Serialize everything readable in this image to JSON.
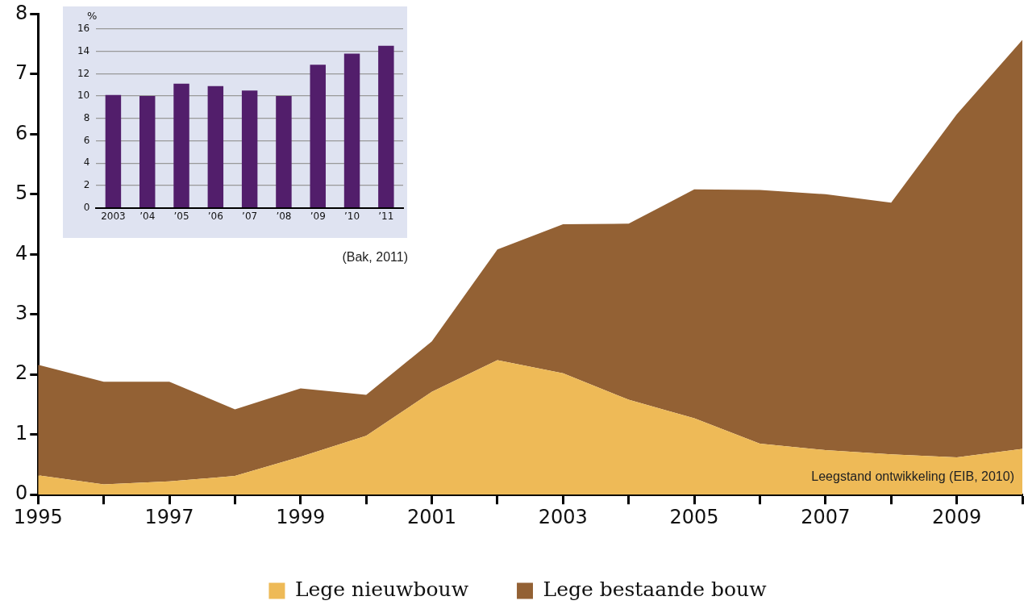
{
  "chart_data": [
    {
      "type": "area",
      "stacked": true,
      "x": [
        1995,
        1996,
        1997,
        1998,
        1999,
        2000,
        2001,
        2002,
        2003,
        2004,
        2005,
        2006,
        2007,
        2008,
        2009,
        2010
      ],
      "series": [
        {
          "name": "Lege nieuwbouw",
          "color": "#eeba57",
          "values": [
            0.32,
            0.17,
            0.22,
            0.31,
            0.63,
            0.98,
            1.71,
            2.24,
            2.02,
            1.58,
            1.27,
            0.85,
            0.74,
            0.67,
            0.62,
            0.76
          ]
        },
        {
          "name": "Lege bestaande bouw",
          "color": "#936134",
          "values": [
            1.84,
            1.71,
            1.66,
            1.11,
            1.14,
            0.68,
            0.84,
            1.84,
            2.48,
            2.93,
            3.81,
            4.22,
            4.26,
            4.19,
            5.71,
            6.81
          ]
        }
      ],
      "xlim": [
        1995,
        2010
      ],
      "xticks": [
        1995,
        {
          "value": 1996,
          "label": null
        },
        1997,
        {
          "value": 1998,
          "label": null
        },
        1999,
        {
          "value": 2000,
          "label": null
        },
        2001,
        {
          "value": 2002,
          "label": null
        },
        2003,
        {
          "value": 2004,
          "label": null
        },
        2005,
        {
          "value": 2006,
          "label": null
        },
        2007,
        {
          "value": 2008,
          "label": null
        },
        2009,
        {
          "value": 2010,
          "label": null
        }
      ],
      "ylim": [
        0,
        8
      ],
      "yticks": [
        0,
        1,
        2,
        3,
        4,
        5,
        6,
        7,
        8
      ],
      "grid": false,
      "legend": "bottom",
      "annotations": [
        "Leegstand ontwikkeling (EIB, 2010)"
      ]
    },
    {
      "type": "bar",
      "categories": [
        "2003",
        "’04",
        "’05",
        "’06",
        "’07",
        "’08",
        "’09",
        "’10",
        "’11"
      ],
      "values": [
        10.1,
        10,
        11.1,
        10.9,
        10.5,
        10,
        12.8,
        13.8,
        14.5
      ],
      "color": "#521e6b",
      "ylabel": "%",
      "ylim": [
        0,
        16
      ],
      "yticks": [
        0,
        2,
        4,
        6,
        8,
        10,
        12,
        14,
        16
      ],
      "grid": "y",
      "annotations": [
        "(Bak, 2011)"
      ]
    }
  ]
}
